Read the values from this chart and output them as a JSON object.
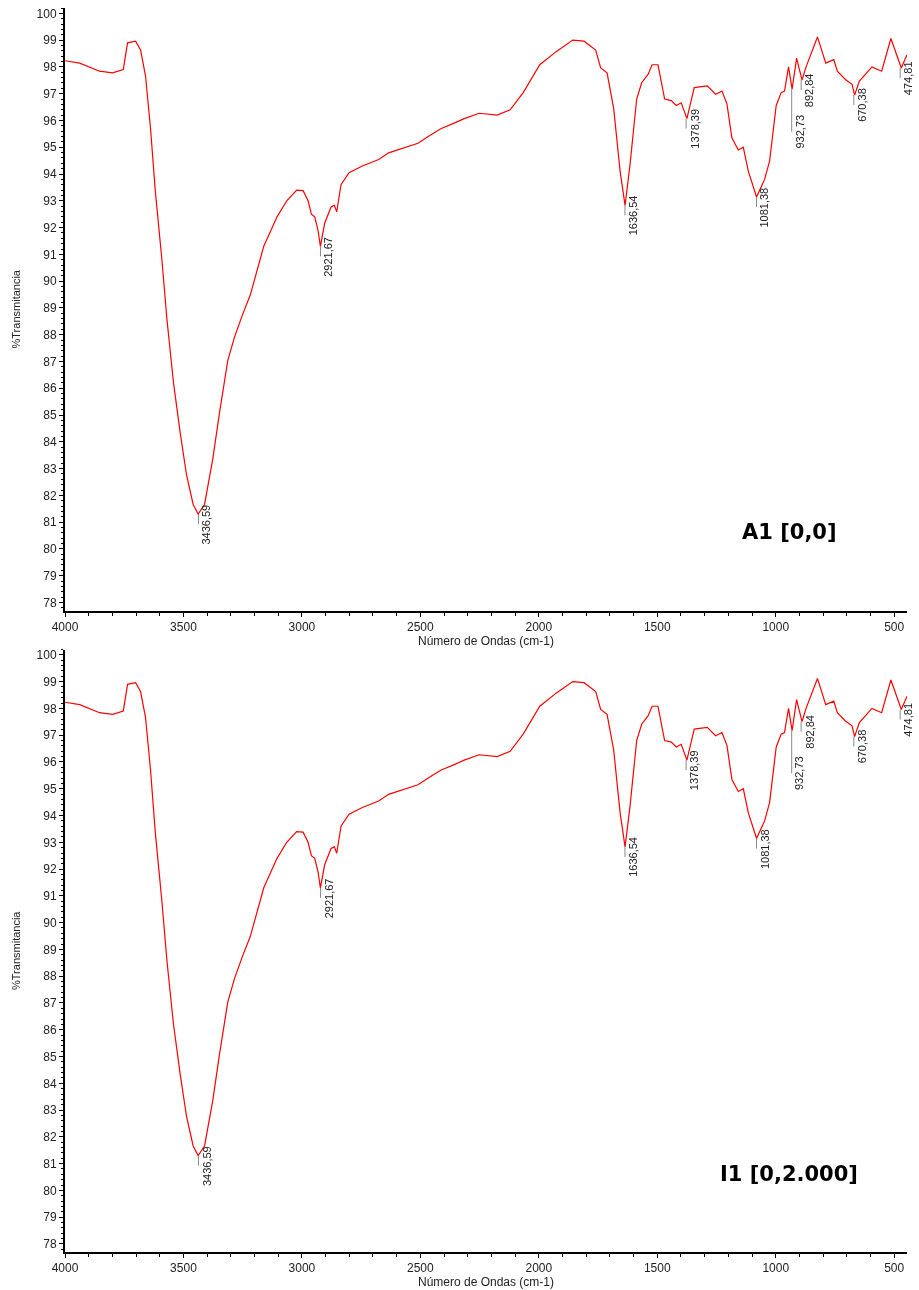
{
  "chart_data": [
    {
      "type": "line",
      "xlabel": "Número de Ondas (cm-1)",
      "ylabel": "%Transmitancia",
      "xlim": [
        4000,
        446
      ],
      "ylim": [
        77.7,
        100.2
      ],
      "xticks": [
        4000,
        3500,
        3000,
        2500,
        2000,
        1500,
        1000,
        500
      ],
      "yticks": [
        78,
        79,
        80,
        81,
        82,
        83,
        84,
        85,
        86,
        87,
        88,
        89,
        90,
        91,
        92,
        93,
        94,
        95,
        96,
        97,
        98,
        99,
        100
      ],
      "x": [
        4000,
        3938,
        3854,
        3799,
        3754,
        3736,
        3702,
        3681,
        3660,
        3639,
        3619,
        3591,
        3570,
        3563,
        3542,
        3514,
        3487,
        3459,
        3438,
        3411,
        3376,
        3348,
        3313,
        3285,
        3251,
        3218,
        3161,
        3105,
        3064,
        3022,
        2995,
        2974,
        2960,
        2946,
        2932,
        2922,
        2904,
        2877,
        2863,
        2853,
        2835,
        2801,
        2745,
        2676,
        2634,
        2510,
        2467,
        2412,
        2357,
        2315,
        2252,
        2176,
        2121,
        2066,
        1996,
        1927,
        1857,
        1809,
        1760,
        1739,
        1712,
        1684,
        1657,
        1636,
        1615,
        1587,
        1566,
        1539,
        1522,
        1497,
        1469,
        1441,
        1420,
        1399,
        1375,
        1344,
        1289,
        1254,
        1227,
        1206,
        1185,
        1158,
        1137,
        1116,
        1081,
        1047,
        1026,
        998,
        977,
        963,
        946,
        931,
        912,
        889,
        872,
        824,
        789,
        755,
        740,
        706,
        678,
        667,
        647,
        594,
        553,
        514,
        470,
        446
      ],
      "series": [
        {
          "color": "#ff0000",
          "values": [
            98.23,
            98.14,
            97.84,
            97.78,
            97.9,
            98.9,
            98.96,
            98.63,
            97.66,
            95.7,
            93.38,
            90.8,
            88.6,
            88.0,
            86.2,
            84.35,
            82.76,
            81.66,
            81.3,
            81.66,
            83.37,
            85.08,
            87.03,
            87.9,
            88.74,
            89.48,
            91.3,
            92.4,
            93.0,
            93.4,
            93.38,
            93.0,
            92.5,
            92.4,
            91.9,
            91.3,
            92.16,
            92.77,
            92.83,
            92.59,
            93.6,
            94.05,
            94.3,
            94.54,
            94.79,
            95.15,
            95.4,
            95.7,
            95.9,
            96.07,
            96.27,
            96.2,
            96.4,
            97.04,
            98.08,
            98.57,
            99.0,
            98.96,
            98.63,
            97.96,
            97.78,
            96.44,
            94.11,
            92.83,
            94.36,
            96.8,
            97.41,
            97.72,
            98.08,
            98.08,
            96.8,
            96.74,
            96.56,
            96.66,
            96.07,
            97.23,
            97.29,
            96.98,
            97.1,
            96.62,
            95.34,
            94.9,
            95.0,
            94.11,
            93.14,
            93.8,
            94.48,
            96.56,
            97.04,
            97.1,
            98.0,
            97.17,
            98.33,
            97.51,
            98.0,
            99.12,
            98.14,
            98.27,
            97.84,
            97.53,
            97.35,
            96.95,
            97.47,
            98.0,
            97.84,
            99.06,
            97.96,
            98.45
          ]
        }
      ],
      "annotations": [
        {
          "text": "3436,59",
          "x": 3436.59,
          "y": 81.3
        },
        {
          "text": "2921,67",
          "x": 2921.67,
          "y": 91.3
        },
        {
          "text": "1636,54",
          "x": 1636.54,
          "y": 92.83
        },
        {
          "text": "1378,39",
          "x": 1378.39,
          "y": 96.07
        },
        {
          "text": "1081,38",
          "x": 1081.38,
          "y": 93.14
        },
        {
          "text": "932,73",
          "x": 932.73,
          "y": 97.17
        },
        {
          "text": "892,84",
          "x": 892.84,
          "y": 97.51
        },
        {
          "text": "670,38",
          "x": 670.38,
          "y": 96.95
        },
        {
          "text": "474,81",
          "x": 474.81,
          "y": 97.96
        },
        "A1 [0,0]"
      ]
    },
    {
      "type": "line",
      "xlabel": "Número de Ondas (cm-1)",
      "ylabel": "%Transmitancia",
      "xlim": [
        4000,
        446
      ],
      "ylim": [
        77.7,
        100.2
      ],
      "xticks": [
        4000,
        3500,
        3000,
        2500,
        2000,
        1500,
        1000,
        500
      ],
      "yticks": [
        78,
        79,
        80,
        81,
        82,
        83,
        84,
        85,
        86,
        87,
        88,
        89,
        90,
        91,
        92,
        93,
        94,
        95,
        96,
        97,
        98,
        99,
        100
      ],
      "x": [
        4000,
        3938,
        3854,
        3799,
        3754,
        3736,
        3702,
        3681,
        3660,
        3639,
        3619,
        3591,
        3570,
        3563,
        3542,
        3514,
        3487,
        3459,
        3438,
        3411,
        3376,
        3348,
        3313,
        3285,
        3251,
        3218,
        3161,
        3105,
        3064,
        3022,
        2995,
        2974,
        2960,
        2946,
        2932,
        2922,
        2904,
        2877,
        2863,
        2853,
        2835,
        2801,
        2745,
        2676,
        2634,
        2510,
        2467,
        2412,
        2357,
        2315,
        2252,
        2176,
        2121,
        2066,
        1996,
        1927,
        1857,
        1809,
        1760,
        1739,
        1712,
        1684,
        1657,
        1636,
        1615,
        1587,
        1566,
        1539,
        1522,
        1497,
        1469,
        1441,
        1420,
        1399,
        1375,
        1344,
        1289,
        1254,
        1227,
        1206,
        1185,
        1158,
        1137,
        1116,
        1081,
        1047,
        1026,
        998,
        977,
        963,
        946,
        931,
        912,
        889,
        872,
        824,
        789,
        755,
        740,
        706,
        678,
        667,
        647,
        594,
        553,
        514,
        470,
        446
      ],
      "series": [
        {
          "color": "#ff0000",
          "values": [
            98.23,
            98.14,
            97.84,
            97.78,
            97.9,
            98.9,
            98.96,
            98.63,
            97.66,
            95.7,
            93.38,
            90.8,
            88.6,
            88.0,
            86.2,
            84.35,
            82.76,
            81.66,
            81.3,
            81.66,
            83.37,
            85.08,
            87.03,
            87.9,
            88.74,
            89.48,
            91.3,
            92.4,
            93.0,
            93.4,
            93.38,
            93.0,
            92.5,
            92.4,
            91.9,
            91.3,
            92.16,
            92.77,
            92.83,
            92.59,
            93.6,
            94.05,
            94.3,
            94.54,
            94.79,
            95.15,
            95.4,
            95.7,
            95.9,
            96.07,
            96.27,
            96.2,
            96.4,
            97.04,
            98.08,
            98.57,
            99.0,
            98.96,
            98.63,
            97.96,
            97.78,
            96.44,
            94.11,
            92.83,
            94.36,
            96.8,
            97.41,
            97.72,
            98.08,
            98.08,
            96.8,
            96.74,
            96.56,
            96.66,
            96.07,
            97.23,
            97.29,
            96.98,
            97.1,
            96.62,
            95.34,
            94.9,
            95.0,
            94.11,
            93.14,
            93.8,
            94.48,
            96.56,
            97.04,
            97.1,
            98.0,
            97.17,
            98.33,
            97.51,
            98.0,
            99.12,
            98.14,
            98.27,
            97.84,
            97.53,
            97.35,
            96.95,
            97.47,
            98.0,
            97.84,
            99.06,
            97.96,
            98.45
          ]
        }
      ],
      "annotations": [
        {
          "text": "3436,59",
          "x": 3436.59,
          "y": 81.3
        },
        {
          "text": "2921,67",
          "x": 2921.67,
          "y": 91.3
        },
        {
          "text": "1636,54",
          "x": 1636.54,
          "y": 92.83
        },
        {
          "text": "1378,39",
          "x": 1378.39,
          "y": 96.07
        },
        {
          "text": "1081,38",
          "x": 1081.38,
          "y": 93.14
        },
        {
          "text": "932,73",
          "x": 932.73,
          "y": 97.17
        },
        {
          "text": "892,84",
          "x": 892.84,
          "y": 97.51
        },
        {
          "text": "670,38",
          "x": 670.38,
          "y": 96.95
        },
        {
          "text": "474,81",
          "x": 474.81,
          "y": 97.96
        },
        "I1 [0,2.000]"
      ]
    }
  ]
}
